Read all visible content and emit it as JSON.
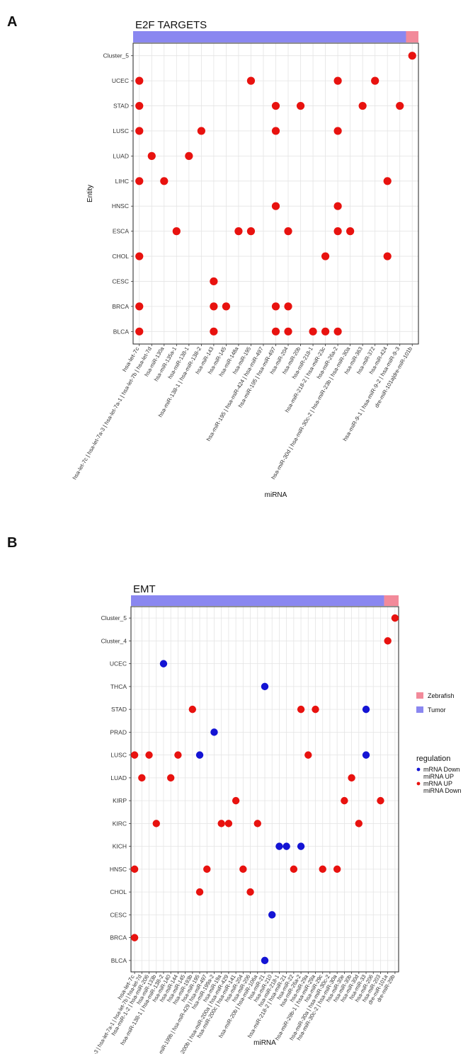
{
  "figure": {
    "panel_a_label": "A",
    "panel_b_label": "B"
  },
  "colors": {
    "tumor": "#8a87f0",
    "zebrafish": "#f28a9a",
    "point_red": "#e8120f",
    "point_blue": "#1414d4"
  },
  "chart_data": [
    {
      "type": "scatter",
      "panel": "A",
      "title": "E2F TARGETS",
      "xlabel": "miRNA",
      "ylabel": "Entity",
      "grid": true,
      "entities": [
        "Cluster_5",
        "UCEC",
        "STAD",
        "LUSC",
        "LUAD",
        "LIHC",
        "HNSC",
        "ESCA",
        "CHOL",
        "CESC",
        "BRCA",
        "BLCA"
      ],
      "mirnas": [
        "hsa-let-7c",
        "hsa-let-7c | hsa-let-7a-3 | hsa-let-7a-1 | hsa-let-7b | hsa-let-7d",
        "hsa-miR-130a",
        "hsa-miR-135a-1",
        "hsa-miR-138-1",
        "hsa-miR-138-1 | hsa-miR-138-2",
        "hsa-miR-143",
        "hsa-miR-145",
        "hsa-miR-148a",
        "hsa-miR-195",
        "hsa-miR-195 | hsa-miR-424 | hsa-miR-497",
        "hsa-miR-195 | hsa-miR-497",
        "hsa-miR-204",
        "hsa-miR-20b",
        "hsa-miR-218-1",
        "hsa-miR-218-2 | hsa-miR-23c",
        "hsa-miR-26a-2",
        "hsa-miR-30d | hsa-miR-30c-2 | hsa-miR-23b | hsa-miR-30a",
        "hsa-miR-363",
        "hsa-miR-372",
        "hsa-miR-424",
        "hsa-miR-9-1 | hsa-miR-9-2 | hsa-miR-9-3",
        "dre-miR-101a|dre-miR-101b"
      ],
      "annotation_bar": [
        {
          "group": "Tumor",
          "count": 22
        },
        {
          "group": "Zebrafish",
          "count": 1
        }
      ],
      "points": [
        {
          "x": "dre-miR-101a|dre-miR-101b",
          "y": "Cluster_5",
          "regulation": "mRNA UP miRNA Down"
        },
        {
          "x": "hsa-let-7c",
          "y": "UCEC",
          "regulation": "mRNA UP miRNA Down"
        },
        {
          "x": "hsa-miR-195",
          "y": "UCEC",
          "regulation": "mRNA UP miRNA Down"
        },
        {
          "x": "hsa-miR-26a-2",
          "y": "UCEC",
          "regulation": "mRNA UP miRNA Down"
        },
        {
          "x": "hsa-miR-372",
          "y": "UCEC",
          "regulation": "mRNA UP miRNA Down"
        },
        {
          "x": "hsa-let-7c",
          "y": "STAD",
          "regulation": "mRNA UP miRNA Down"
        },
        {
          "x": "hsa-miR-195 | hsa-miR-497",
          "y": "STAD",
          "regulation": "mRNA UP miRNA Down"
        },
        {
          "x": "hsa-miR-20b",
          "y": "STAD",
          "regulation": "mRNA UP miRNA Down"
        },
        {
          "x": "hsa-miR-363",
          "y": "STAD",
          "regulation": "mRNA UP miRNA Down"
        },
        {
          "x": "hsa-miR-9-1 | hsa-miR-9-2 | hsa-miR-9-3",
          "y": "STAD",
          "regulation": "mRNA UP miRNA Down"
        },
        {
          "x": "hsa-let-7c",
          "y": "LUSC",
          "regulation": "mRNA UP miRNA Down"
        },
        {
          "x": "hsa-miR-138-1 | hsa-miR-138-2",
          "y": "LUSC",
          "regulation": "mRNA UP miRNA Down"
        },
        {
          "x": "hsa-miR-195 | hsa-miR-497",
          "y": "LUSC",
          "regulation": "mRNA UP miRNA Down"
        },
        {
          "x": "hsa-miR-26a-2",
          "y": "LUSC",
          "regulation": "mRNA UP miRNA Down"
        },
        {
          "x": "hsa-let-7c | hsa-let-7a-3 | hsa-let-7a-1 | hsa-let-7b | hsa-let-7d",
          "y": "LUAD",
          "regulation": "mRNA UP miRNA Down"
        },
        {
          "x": "hsa-miR-138-1",
          "y": "LUAD",
          "regulation": "mRNA UP miRNA Down"
        },
        {
          "x": "hsa-let-7c",
          "y": "LIHC",
          "regulation": "mRNA UP miRNA Down"
        },
        {
          "x": "hsa-miR-130a",
          "y": "LIHC",
          "regulation": "mRNA UP miRNA Down"
        },
        {
          "x": "hsa-miR-424",
          "y": "LIHC",
          "regulation": "mRNA UP miRNA Down"
        },
        {
          "x": "hsa-miR-195 | hsa-miR-497",
          "y": "HNSC",
          "regulation": "mRNA UP miRNA Down"
        },
        {
          "x": "hsa-miR-26a-2",
          "y": "HNSC",
          "regulation": "mRNA UP miRNA Down"
        },
        {
          "x": "hsa-miR-135a-1",
          "y": "ESCA",
          "regulation": "mRNA UP miRNA Down"
        },
        {
          "x": "hsa-miR-148a",
          "y": "ESCA",
          "regulation": "mRNA UP miRNA Down"
        },
        {
          "x": "hsa-miR-195",
          "y": "ESCA",
          "regulation": "mRNA UP miRNA Down"
        },
        {
          "x": "hsa-miR-204",
          "y": "ESCA",
          "regulation": "mRNA UP miRNA Down"
        },
        {
          "x": "hsa-miR-26a-2",
          "y": "ESCA",
          "regulation": "mRNA UP miRNA Down"
        },
        {
          "x": "hsa-miR-30d | hsa-miR-30c-2 | hsa-miR-23b | hsa-miR-30a",
          "y": "ESCA",
          "regulation": "mRNA UP miRNA Down"
        },
        {
          "x": "hsa-let-7c",
          "y": "CHOL",
          "regulation": "mRNA UP miRNA Down"
        },
        {
          "x": "hsa-miR-218-2 | hsa-miR-23c",
          "y": "CHOL",
          "regulation": "mRNA UP miRNA Down"
        },
        {
          "x": "hsa-miR-424",
          "y": "CHOL",
          "regulation": "mRNA UP miRNA Down"
        },
        {
          "x": "hsa-miR-143",
          "y": "CESC",
          "regulation": "mRNA UP miRNA Down"
        },
        {
          "x": "hsa-let-7c",
          "y": "BRCA",
          "regulation": "mRNA UP miRNA Down"
        },
        {
          "x": "hsa-miR-143",
          "y": "BRCA",
          "regulation": "mRNA UP miRNA Down"
        },
        {
          "x": "hsa-miR-145",
          "y": "BRCA",
          "regulation": "mRNA UP miRNA Down"
        },
        {
          "x": "hsa-miR-195 | hsa-miR-497",
          "y": "BRCA",
          "regulation": "mRNA UP miRNA Down"
        },
        {
          "x": "hsa-miR-204",
          "y": "BRCA",
          "regulation": "mRNA UP miRNA Down"
        },
        {
          "x": "hsa-let-7c",
          "y": "BLCA",
          "regulation": "mRNA UP miRNA Down"
        },
        {
          "x": "hsa-miR-143",
          "y": "BLCA",
          "regulation": "mRNA UP miRNA Down"
        },
        {
          "x": "hsa-miR-195 | hsa-miR-497",
          "y": "BLCA",
          "regulation": "mRNA UP miRNA Down"
        },
        {
          "x": "hsa-miR-204",
          "y": "BLCA",
          "regulation": "mRNA UP miRNA Down"
        },
        {
          "x": "hsa-miR-218-1",
          "y": "BLCA",
          "regulation": "mRNA UP miRNA Down"
        },
        {
          "x": "hsa-miR-218-2 | hsa-miR-23c",
          "y": "BLCA",
          "regulation": "mRNA UP miRNA Down"
        },
        {
          "x": "hsa-miR-26a-2",
          "y": "BLCA",
          "regulation": "mRNA UP miRNA Down"
        }
      ]
    },
    {
      "type": "scatter",
      "panel": "B",
      "title": "EMT",
      "xlabel": "miRNA",
      "ylabel": "",
      "grid": true,
      "entities": [
        "Cluster_5",
        "Cluster_4",
        "UCEC",
        "THCA",
        "STAD",
        "PRAD",
        "LUSC",
        "LUAD",
        "KIRP",
        "KIRC",
        "KICH",
        "HNSC",
        "CHOL",
        "CESC",
        "BRCA",
        "BLCA"
      ],
      "mirnas": [
        "hsa-let-7c",
        "hsa-let-7c | hsa-let-7a-3 | hsa-let-7a-1 | hsa-let-7b | hsa-let-7d",
        "hsa-miR-1-2 | hsa-miR-206",
        "hsa-miR-133b",
        "hsa-miR-138-1 | hsa-miR-138-2",
        "hsa-miR-140",
        "hsa-miR-144",
        "hsa-miR-145",
        "hsa-miR-193b",
        "hsa-miR-195",
        "hsa-miR-199a-1 | hsa-miR-199b | hsa-miR-429 | hsa-miR-497",
        "hsa-miR-199a-2",
        "hsa-miR-19a",
        "hsa-miR-200b | hsa-miR-200a | hsa-miR-429",
        "hsa-miR-200c | hsa-miR-141",
        "hsa-miR-204",
        "hsa-miR-206",
        "hsa-miR-20b | hsa-miR-106a",
        "hsa-miR-21",
        "hsa-miR-210",
        "hsa-miR-218-1",
        "hsa-miR-218-2 | hsa-miR-21",
        "hsa-miR-22",
        "hsa-miR-26a-2",
        "hsa-miR-29a",
        "hsa-miR-29b-1 | hsa-miR-29a",
        "hsa-miR-29c",
        "hsa-miR-30a | hsa-miR-30c-2",
        "hsa-miR-30c-2 | hsa-miR-30a",
        "hsa-miR-30e",
        "hsa-miR-30b",
        "hsa-miR-30d",
        "hsa-miR-33",
        "hsa-miR-206",
        "hsa-miR-203",
        "dre-miR-101a",
        "dre-miR-29b"
      ],
      "annotation_bar": [
        {
          "group": "Tumor",
          "count": 35
        },
        {
          "group": "Zebrafish",
          "count": 2
        }
      ],
      "points": [
        {
          "x": "dre-miR-29b",
          "y": "Cluster_5",
          "regulation": "mRNA UP miRNA Down"
        },
        {
          "x": "dre-miR-101a",
          "y": "Cluster_4",
          "regulation": "mRNA UP miRNA Down"
        },
        {
          "x": "hsa-miR-138-1 | hsa-miR-138-2",
          "y": "UCEC",
          "regulation": "mRNA Down miRNA UP"
        },
        {
          "x": "hsa-miR-21",
          "y": "THCA",
          "regulation": "mRNA Down miRNA UP"
        },
        {
          "x": "hsa-miR-193b",
          "y": "STAD",
          "regulation": "mRNA UP miRNA Down"
        },
        {
          "x": "hsa-miR-26a-2",
          "y": "STAD",
          "regulation": "mRNA UP miRNA Down"
        },
        {
          "x": "hsa-miR-29b-1 | hsa-miR-29a",
          "y": "STAD",
          "regulation": "mRNA UP miRNA Down"
        },
        {
          "x": "hsa-miR-33",
          "y": "STAD",
          "regulation": "mRNA Down miRNA UP"
        },
        {
          "x": "hsa-miR-199a-2",
          "y": "PRAD",
          "regulation": "mRNA Down miRNA UP"
        },
        {
          "x": "hsa-let-7c",
          "y": "LUSC",
          "regulation": "mRNA UP miRNA Down"
        },
        {
          "x": "hsa-miR-1-2 | hsa-miR-206",
          "y": "LUSC",
          "regulation": "mRNA UP miRNA Down"
        },
        {
          "x": "hsa-miR-144",
          "y": "LUSC",
          "regulation": "mRNA UP miRNA Down"
        },
        {
          "x": "hsa-miR-195",
          "y": "LUSC",
          "regulation": "mRNA Down miRNA UP"
        },
        {
          "x": "hsa-miR-29a",
          "y": "LUSC",
          "regulation": "mRNA UP miRNA Down"
        },
        {
          "x": "hsa-miR-33",
          "y": "LUSC",
          "regulation": "mRNA Down miRNA UP"
        },
        {
          "x": "hsa-let-7c | hsa-let-7a-3 | hsa-let-7a-1 | hsa-let-7b | hsa-let-7d",
          "y": "LUAD",
          "regulation": "mRNA UP miRNA Down"
        },
        {
          "x": "hsa-miR-140",
          "y": "LUAD",
          "regulation": "mRNA UP miRNA Down"
        },
        {
          "x": "hsa-miR-30b",
          "y": "LUAD",
          "regulation": "mRNA UP miRNA Down"
        },
        {
          "x": "hsa-miR-200c | hsa-miR-141",
          "y": "KIRP",
          "regulation": "mRNA UP miRNA Down"
        },
        {
          "x": "hsa-miR-30e",
          "y": "KIRP",
          "regulation": "mRNA UP miRNA Down"
        },
        {
          "x": "hsa-miR-203",
          "y": "KIRP",
          "regulation": "mRNA UP miRNA Down"
        },
        {
          "x": "hsa-miR-133b",
          "y": "KIRC",
          "regulation": "mRNA UP miRNA Down"
        },
        {
          "x": "hsa-miR-19a",
          "y": "KIRC",
          "regulation": "mRNA UP miRNA Down"
        },
        {
          "x": "hsa-miR-200b | hsa-miR-200a | hsa-miR-429",
          "y": "KIRC",
          "regulation": "mRNA UP miRNA Down"
        },
        {
          "x": "hsa-miR-20b | hsa-miR-106a",
          "y": "KIRC",
          "regulation": "mRNA UP miRNA Down"
        },
        {
          "x": "hsa-miR-30d",
          "y": "KIRC",
          "regulation": "mRNA UP miRNA Down"
        },
        {
          "x": "hsa-miR-218-1",
          "y": "KICH",
          "regulation": "mRNA Down miRNA UP"
        },
        {
          "x": "hsa-miR-218-2 | hsa-miR-21",
          "y": "KICH",
          "regulation": "mRNA Down miRNA UP"
        },
        {
          "x": "hsa-miR-26a-2",
          "y": "KICH",
          "regulation": "mRNA Down miRNA UP"
        },
        {
          "x": "hsa-let-7c",
          "y": "HNSC",
          "regulation": "mRNA UP miRNA Down"
        },
        {
          "x": "hsa-miR-199a-1 | hsa-miR-199b | hsa-miR-429 | hsa-miR-497",
          "y": "HNSC",
          "regulation": "mRNA UP miRNA Down"
        },
        {
          "x": "hsa-miR-204",
          "y": "HNSC",
          "regulation": "mRNA UP miRNA Down"
        },
        {
          "x": "hsa-miR-22",
          "y": "HNSC",
          "regulation": "mRNA UP miRNA Down"
        },
        {
          "x": "hsa-miR-29c",
          "y": "HNSC",
          "regulation": "mRNA UP miRNA Down"
        },
        {
          "x": "hsa-miR-30c-2 | hsa-miR-30a",
          "y": "HNSC",
          "regulation": "mRNA UP miRNA Down"
        },
        {
          "x": "hsa-miR-195",
          "y": "CHOL",
          "regulation": "mRNA UP miRNA Down"
        },
        {
          "x": "hsa-miR-206",
          "y": "CHOL",
          "regulation": "mRNA UP miRNA Down"
        },
        {
          "x": "hsa-miR-210",
          "y": "CESC",
          "regulation": "mRNA Down miRNA UP"
        },
        {
          "x": "hsa-let-7c",
          "y": "BRCA",
          "regulation": "mRNA UP miRNA Down"
        },
        {
          "x": "hsa-miR-21",
          "y": "BLCA",
          "regulation": "mRNA Down miRNA UP"
        }
      ],
      "legends": [
        {
          "title": "",
          "items": [
            {
              "label": "Zebrafish",
              "color": "#f28a9a"
            },
            {
              "label": "Tumor",
              "color": "#8a87f0"
            }
          ]
        },
        {
          "title": "regulation",
          "items": [
            {
              "label": "mRNA Down miRNA UP",
              "lines": [
                "mRNA Down",
                "miRNA UP"
              ],
              "color": "#1414d4"
            },
            {
              "label": "mRNA UP miRNA Down",
              "lines": [
                "mRNA UP",
                "miRNA Down"
              ],
              "color": "#e8120f"
            }
          ]
        }
      ],
      "legend_position": "right"
    }
  ]
}
